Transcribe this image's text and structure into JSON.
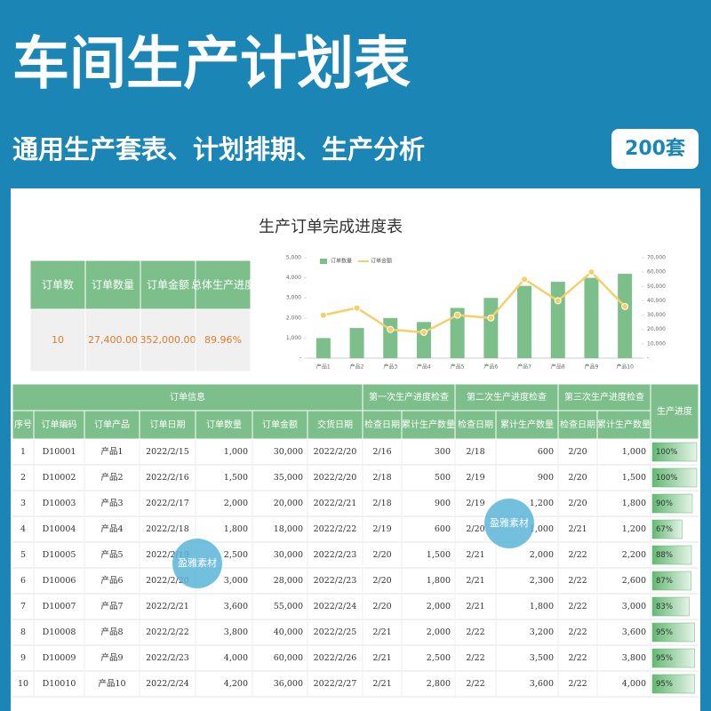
{
  "header": {
    "title": "车间生产计划表",
    "subtitle": "通用生产套表、计划排期、生产分析",
    "badge": "200套"
  },
  "summary": {
    "headers": [
      "订单数",
      "订单数量",
      "订单金额",
      "总体生产进度"
    ],
    "values": [
      "10",
      "27,400.00",
      "352,000.00",
      "89.96%"
    ]
  },
  "chart_data": {
    "type": "bar",
    "title": "生产订单完成进度表",
    "categories": [
      "产品1",
      "产品2",
      "产品3",
      "产品4",
      "产品5",
      "产品6",
      "产品7",
      "产品8",
      "产品9",
      "产品10"
    ],
    "series": [
      {
        "name": "订单数量",
        "type": "bar",
        "color": "#7dbf8a",
        "values": [
          1000,
          1500,
          2000,
          1800,
          2500,
          3000,
          3600,
          3800,
          4000,
          4200
        ]
      },
      {
        "name": "订单金额",
        "type": "line",
        "color": "#f5cf6a",
        "axis": "y2",
        "values": [
          30000,
          35000,
          20000,
          18000,
          30000,
          28000,
          55000,
          40000,
          60000,
          36000
        ]
      }
    ],
    "ylim": [
      0,
      5000
    ],
    "yticks": [
      {
        "value": 0,
        "label": "-"
      },
      {
        "value": 1000,
        "label": "1,000"
      },
      {
        "value": 2000,
        "label": "2,000"
      },
      {
        "value": 3000,
        "label": "3,000"
      },
      {
        "value": 4000,
        "label": "4,000"
      },
      {
        "value": 5000,
        "label": "5,000"
      }
    ],
    "y2lim": [
      0,
      70000
    ],
    "y2ticks": [
      {
        "value": 0,
        "label": "-"
      },
      {
        "value": 10000,
        "label": "10,000"
      },
      {
        "value": 20000,
        "label": "20,000"
      },
      {
        "value": 30000,
        "label": "30,000"
      },
      {
        "value": 40000,
        "label": "40,000"
      },
      {
        "value": 50000,
        "label": "50,000"
      },
      {
        "value": 60000,
        "label": "60,000"
      },
      {
        "value": 70000,
        "label": "70,000"
      }
    ],
    "legend": "top-left"
  },
  "table": {
    "groups": [
      "订单信息",
      "第一次生产进度检查",
      "第二次生产进度检查",
      "第三次生产进度检查",
      "生产进度"
    ],
    "columns": [
      "序号",
      "订单编码",
      "订单产品",
      "订单日期",
      "订单数量",
      "订单金额",
      "交货日期",
      "检查日期",
      "累计生产数量",
      "检查日期",
      "累计生产数量",
      "检查日期",
      "累计生产数量"
    ],
    "rows": [
      [
        "1",
        "D10001",
        "产品1",
        "2022/2/15",
        "1,000",
        "30,000",
        "2022/2/20",
        "2/16",
        "300",
        "2/18",
        "600",
        "2/20",
        "1,000"
      ],
      [
        "2",
        "D10002",
        "产品2",
        "2022/2/16",
        "1,500",
        "35,000",
        "2022/2/20",
        "2/18",
        "500",
        "2/19",
        "900",
        "2/20",
        "1,500"
      ],
      [
        "3",
        "D10003",
        "产品3",
        "2022/2/17",
        "2,000",
        "20,000",
        "2022/2/21",
        "2/18",
        "900",
        "2/19",
        "1,200",
        "2/20",
        "1,800"
      ],
      [
        "4",
        "D10004",
        "产品4",
        "2022/2/18",
        "1,800",
        "18,000",
        "2022/2/22",
        "2/19",
        "600",
        "2/20",
        "1,000",
        "2/21",
        "1,200"
      ],
      [
        "5",
        "D10005",
        "产品5",
        "2022/2/19",
        "2,500",
        "30,000",
        "2022/2/23",
        "2/20",
        "1,500",
        "2/21",
        "2,000",
        "2/22",
        "2,200"
      ],
      [
        "6",
        "D10006",
        "产品6",
        "2022/2/20",
        "3,000",
        "28,000",
        "2022/2/23",
        "2/20",
        "1,800",
        "2/21",
        "2,300",
        "2/22",
        "2,600"
      ],
      [
        "7",
        "D10007",
        "产品7",
        "2022/2/21",
        "3,600",
        "55,000",
        "2022/2/24",
        "2/20",
        "2,000",
        "2/21",
        "1,800",
        "2/22",
        "3,000"
      ],
      [
        "8",
        "D10008",
        "产品8",
        "2022/2/22",
        "3,800",
        "40,000",
        "2022/2/25",
        "2/21",
        "2,000",
        "2/22",
        "3,200",
        "2/22",
        "3,600"
      ],
      [
        "9",
        "D10009",
        "产品9",
        "2022/2/23",
        "4,000",
        "60,000",
        "2022/2/26",
        "2/21",
        "2,500",
        "2/22",
        "3,500",
        "2/22",
        "3,800"
      ],
      [
        "10",
        "D10010",
        "产品10",
        "2022/2/24",
        "4,200",
        "36,000",
        "2022/2/27",
        "2/21",
        "2,800",
        "2/22",
        "3,600",
        "2/22",
        "4,000"
      ]
    ],
    "progress": [
      {
        "value": 100,
        "label": "100%"
      },
      {
        "value": 100,
        "label": "100%"
      },
      {
        "value": 90,
        "label": "90%"
      },
      {
        "value": 67,
        "label": "67%"
      },
      {
        "value": 88,
        "label": "88%"
      },
      {
        "value": 87,
        "label": "87%"
      },
      {
        "value": 83,
        "label": "83%"
      },
      {
        "value": 95,
        "label": "95%"
      },
      {
        "value": 95,
        "label": "95%"
      },
      {
        "value": 95,
        "label": "95%"
      }
    ]
  },
  "watermarks": [
    "盈雅素材",
    "盈雅素材"
  ]
}
